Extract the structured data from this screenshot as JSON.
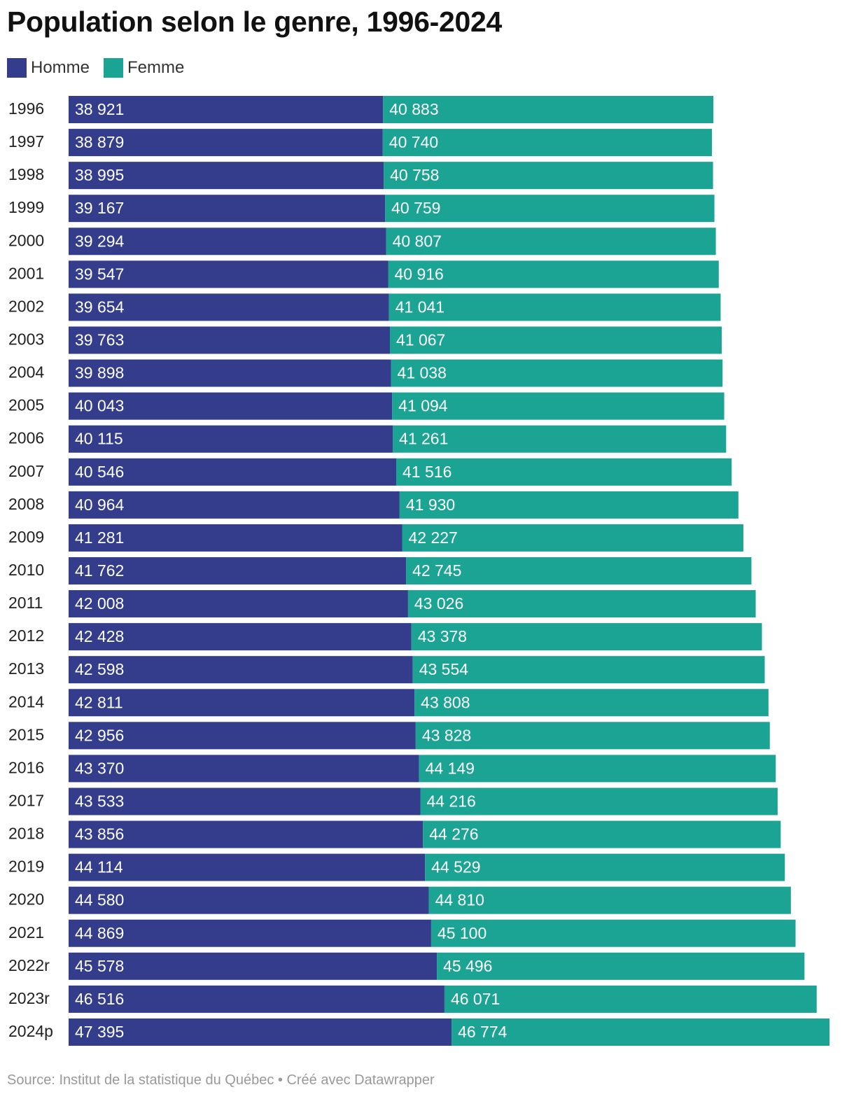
{
  "title": "Population selon le genre, 1996-2024",
  "legend": [
    {
      "label": "Homme",
      "color": "#333d8c"
    },
    {
      "label": "Femme",
      "color": "#1ba394"
    }
  ],
  "source_text": "Source: Institut de la statistique du Québec • Créé avec Datawrapper",
  "chart_data": {
    "type": "bar",
    "orientation": "horizontal",
    "stacked": true,
    "title": "Population selon le genre, 1996-2024",
    "categories": [
      "1996",
      "1997",
      "1998",
      "1999",
      "2000",
      "2001",
      "2002",
      "2003",
      "2004",
      "2005",
      "2006",
      "2007",
      "2008",
      "2009",
      "2010",
      "2011",
      "2012",
      "2013",
      "2014",
      "2015",
      "2016",
      "2017",
      "2018",
      "2019",
      "2020",
      "2021",
      "2022r",
      "2023r",
      "2024p"
    ],
    "series": [
      {
        "name": "Homme",
        "color": "#333d8c",
        "values": [
          38921,
          38879,
          38995,
          39167,
          39294,
          39547,
          39654,
          39763,
          39898,
          40043,
          40115,
          40546,
          40964,
          41281,
          41762,
          42008,
          42428,
          42598,
          42811,
          42956,
          43370,
          43533,
          43856,
          44114,
          44580,
          44869,
          45578,
          46516,
          47395
        ],
        "labels": [
          "38 921",
          "38 879",
          "38 995",
          "39 167",
          "39 294",
          "39 547",
          "39 654",
          "39 763",
          "39 898",
          "40 043",
          "40 115",
          "40 546",
          "40 964",
          "41 281",
          "41 762",
          "42 008",
          "42 428",
          "42 598",
          "42 811",
          "42 956",
          "43 370",
          "43 533",
          "43 856",
          "44 114",
          "44 580",
          "44 869",
          "45 578",
          "46 516",
          "47 395"
        ]
      },
      {
        "name": "Femme",
        "color": "#1ba394",
        "values": [
          40883,
          40740,
          40758,
          40759,
          40807,
          40916,
          41041,
          41067,
          41038,
          41094,
          41261,
          41516,
          41930,
          42227,
          42745,
          43026,
          43378,
          43554,
          43808,
          43828,
          44149,
          44216,
          44276,
          44529,
          44810,
          45100,
          45496,
          46071,
          46774
        ],
        "labels": [
          "40 883",
          "40 740",
          "40 758",
          "40 759",
          "40 807",
          "40 916",
          "41 041",
          "41 067",
          "41 038",
          "41 094",
          "41 261",
          "41 516",
          "41 930",
          "42 227",
          "42 745",
          "43 026",
          "43 378",
          "43 554",
          "43 808",
          "43 828",
          "44 149",
          "44 216",
          "44 276",
          "44 529",
          "44 810",
          "45 100",
          "45 496",
          "46 071",
          "46 774"
        ]
      }
    ],
    "xlim": [
      0,
      94169
    ],
    "grid": false,
    "legend_position": "top-left"
  }
}
